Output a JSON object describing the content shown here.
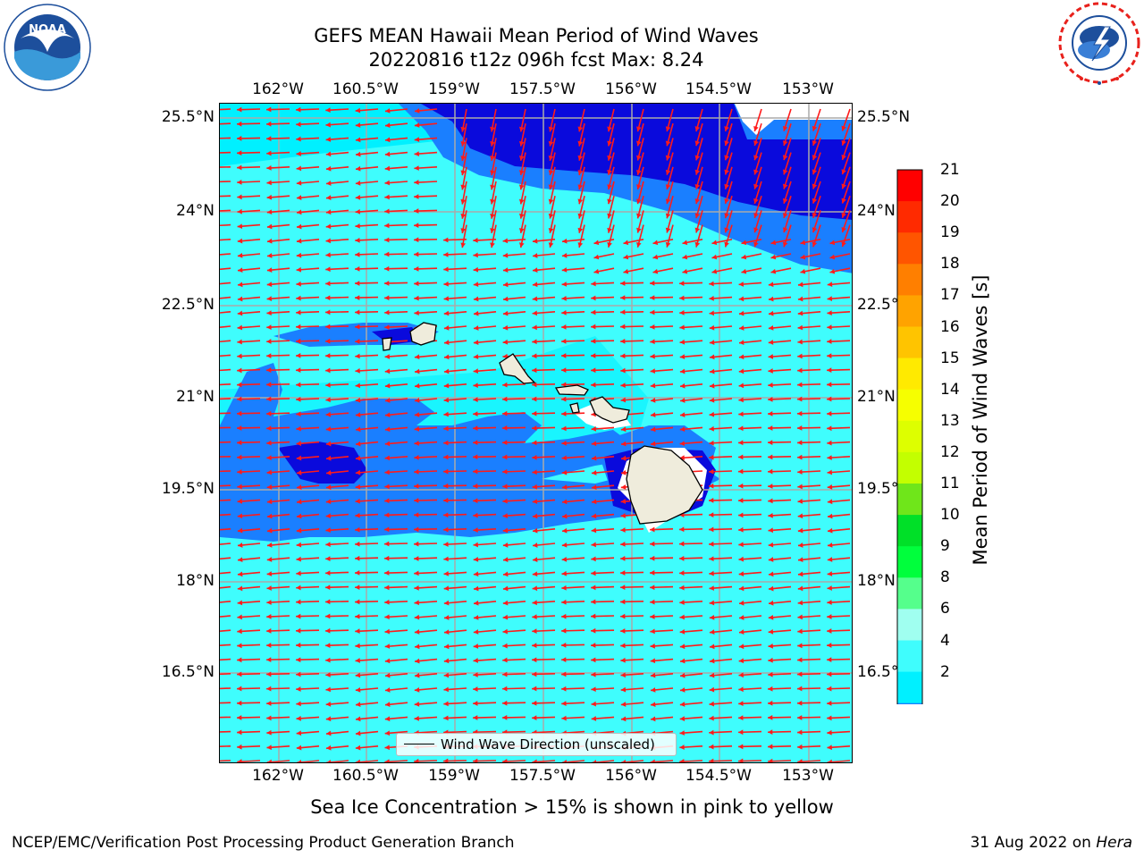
{
  "header": {
    "title_line1": "GEFS MEAN Hawaii Mean Period of Wind Waves",
    "title_line2": "20220816 t12z 096h fcst   Max: 8.24"
  },
  "logos": {
    "left": {
      "name": "noaa-logo",
      "text": "NOAA",
      "ring_text": "NATIONAL OCEANIC AND ATMOSPHERIC ADMINISTRATION · U.S. DEPARTMENT OF COMMERCE",
      "color": "#1d4f9c"
    },
    "right": {
      "name": "nws-logo",
      "ring_text": "NATIONAL WEATHER SERVICE",
      "color": "#e8211c"
    }
  },
  "map": {
    "lon_ticks": [
      "162°W",
      "160.5°W",
      "159°W",
      "157.5°W",
      "156°W",
      "154.5°W",
      "153°W"
    ],
    "lat_ticks": [
      "25.5°N",
      "24°N",
      "22.5°N",
      "21°N",
      "19.5°N",
      "18°N",
      "16.5°N"
    ],
    "field_colors": {
      "period_2_4": "#1a7fff",
      "period_4_6": "#00f0ff",
      "period_6_8": "#3ffdfd",
      "below_2": "#0a0adc"
    },
    "arrow_color": "#ff1a1a",
    "land_color": "#efecdc",
    "islands": [
      "Niihau",
      "Kauai",
      "Oahu",
      "Molokai",
      "Lanai",
      "Maui",
      "Kahoolawe",
      "Hawaii"
    ]
  },
  "legend": {
    "label": "Wind Wave Direction (unscaled)"
  },
  "colorbar": {
    "title": "Mean Period of Wind Waves [s]",
    "labels": [
      "21",
      "20",
      "19",
      "18",
      "17",
      "16",
      "15",
      "14",
      "13",
      "12",
      "11",
      "10",
      "9",
      "8",
      "6",
      "4",
      "2"
    ],
    "colors": [
      "#ff0000",
      "#ff2a00",
      "#ff5500",
      "#ff7f00",
      "#ffa300",
      "#ffc400",
      "#ffea00",
      "#f6ff00",
      "#ddff00",
      "#c3ff00",
      "#6fe61a",
      "#00e028",
      "#00ff3c",
      "#55ff8c",
      "#a0fff0",
      "#3ffdfd",
      "#00f0ff",
      "#1a7fff"
    ],
    "under_color": "#0a0adc"
  },
  "notes": {
    "ice": "Sea Ice Concentration > 15% is shown in pink to yellow",
    "footer_left": "NCEP/EMC/Verification Post Processing Product Generation Branch",
    "footer_right_date": "31 Aug 2022 on",
    "footer_right_machine": "Hera"
  }
}
